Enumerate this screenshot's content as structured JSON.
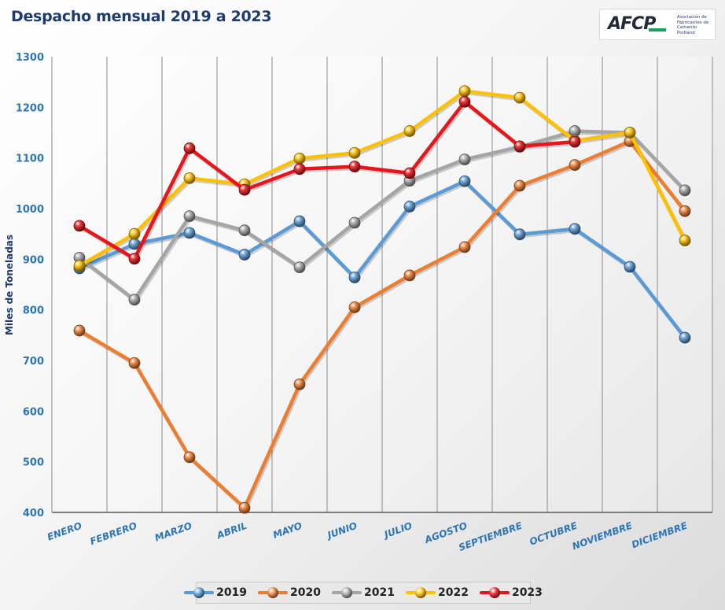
{
  "header": {
    "title": "Despacho mensual 2019 a 2023"
  },
  "logo": {
    "mark": "AFCP",
    "text": "Asociación de Fabricantes de Cemento Portland",
    "colors": {
      "mark": "#222a38",
      "accent": "#1aa05a"
    }
  },
  "chart_data": {
    "type": "line",
    "title": "Despacho mensual 2019 a 2023",
    "xlabel": "",
    "ylabel": "Miles de Toneladas",
    "ylim": [
      400,
      1300
    ],
    "yticks": [
      400,
      500,
      600,
      700,
      800,
      900,
      1000,
      1100,
      1200,
      1300
    ],
    "grid": "vertical",
    "legend_position": "bottom",
    "categories": [
      "ENERO",
      "FEBRERO",
      "MARZO",
      "ABRIL",
      "MAYO",
      "JUNIO",
      "JULIO",
      "AGOSTO",
      "SEPTIEMBRE",
      "OCTUBRE",
      "NOVIEMBRE",
      "DICIEMBRE"
    ],
    "series": [
      {
        "name": "2019",
        "color": "#5b9bd5",
        "values": [
          882,
          930,
          952,
          909,
          975,
          864,
          1004,
          1054,
          949,
          960,
          885,
          745
        ]
      },
      {
        "name": "2020",
        "color": "#ed7d31",
        "values": [
          759,
          695,
          509,
          409,
          653,
          805,
          868,
          924,
          1045,
          1086,
          1133,
          995
        ]
      },
      {
        "name": "2021",
        "color": "#a5a5a5",
        "values": [
          903,
          820,
          985,
          957,
          884,
          972,
          1055,
          1097,
          1122,
          1153,
          1150,
          1036
        ]
      },
      {
        "name": "2022",
        "color": "#ffc000",
        "values": [
          887,
          950,
          1060,
          1048,
          1099,
          1110,
          1153,
          1232,
          1219,
          1134,
          1150,
          937
        ]
      },
      {
        "name": "2023",
        "color": "#e8161c",
        "values": [
          966,
          901,
          1119,
          1037,
          1078,
          1083,
          1070,
          1211,
          1123,
          1132,
          null,
          null
        ]
      }
    ]
  }
}
